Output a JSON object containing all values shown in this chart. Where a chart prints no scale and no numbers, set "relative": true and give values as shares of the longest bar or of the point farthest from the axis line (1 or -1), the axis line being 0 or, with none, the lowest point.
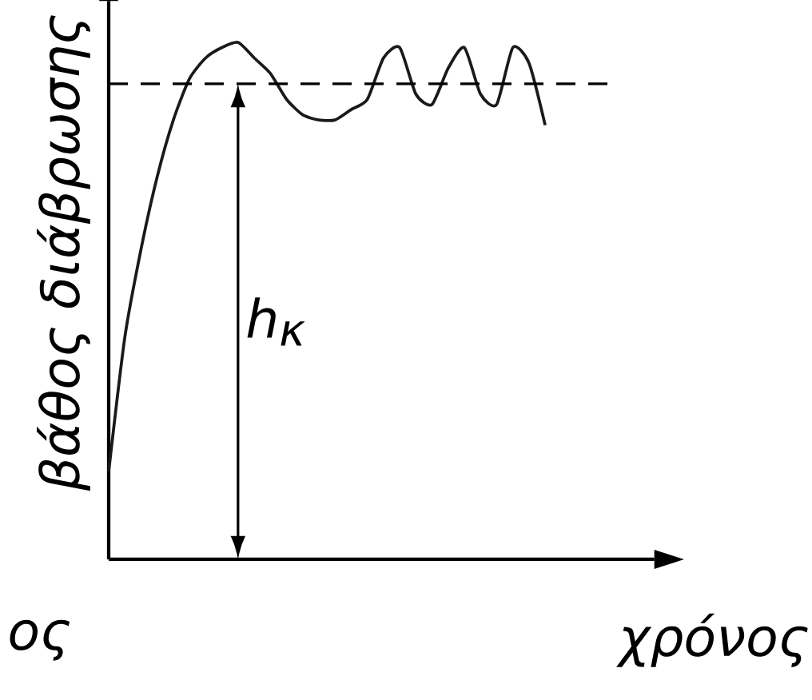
{
  "chart_data": {
    "type": "line",
    "relative": true,
    "ylabel": "βάθος διάβρωσης",
    "xlabel": "χρόνος",
    "tick_labels": false,
    "categories": [
      null,
      null,
      null,
      null,
      null,
      null,
      null,
      null,
      null,
      null,
      null,
      null,
      null,
      null,
      null,
      null,
      null,
      null,
      null,
      null,
      null,
      null,
      null,
      null,
      null,
      null,
      null,
      null
    ],
    "values": [
      0.17,
      0.43,
      0.6,
      0.74,
      0.85,
      0.93,
      0.97,
      0.99,
      1,
      0.97,
      0.94,
      0.89,
      0.86,
      0.85,
      0.85,
      0.87,
      0.89,
      0.97,
      0.99,
      0.9,
      0.88,
      0.95,
      0.99,
      0.9,
      0.88,
      0.99,
      0.96,
      0.84
    ],
    "color": "#1a1a1a",
    "ref_lines": [
      {
        "axis": "y",
        "value": 0.92,
        "line_style": "dashed"
      }
    ],
    "annotations": [
      "h$_{κ}$",
      "ος"
    ]
  }
}
